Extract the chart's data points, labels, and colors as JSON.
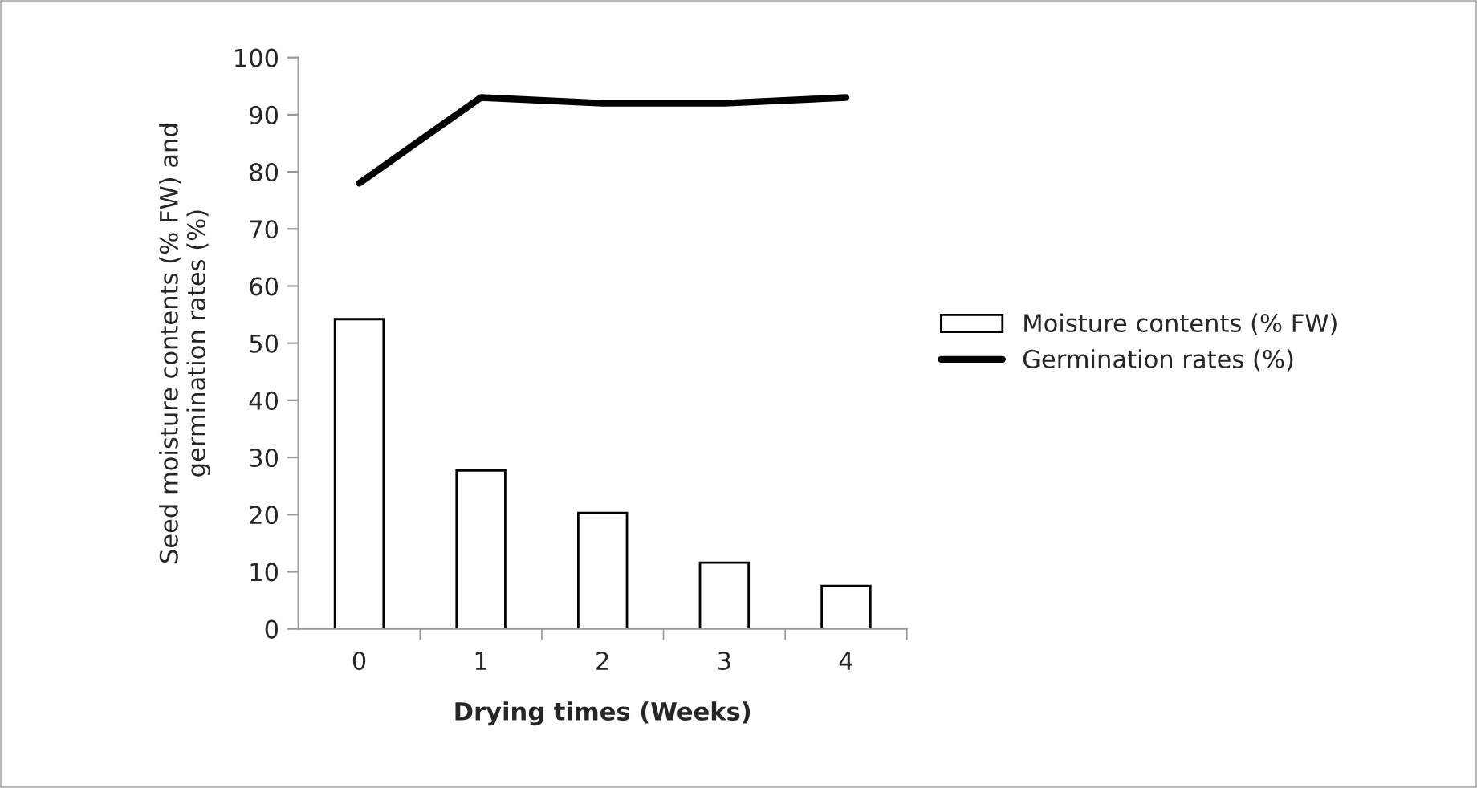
{
  "chart_data": {
    "type": "bar",
    "categories": [
      "0",
      "1",
      "2",
      "3",
      "4"
    ],
    "xlabel": "Drying times (Weeks)",
    "ylabel": "Seed moisture contents (% FW) and\ngermination rates (%)",
    "series": [
      {
        "name": "Moisture contents (% FW)",
        "color": "#ffffff",
        "values": [
          54.2,
          27.7,
          20.3,
          11.6,
          7.5
        ]
      },
      {
        "name": "Germination rates (%)",
        "type": "line",
        "color": "#000000",
        "values": [
          78,
          93,
          92,
          92,
          93
        ]
      }
    ],
    "ylim": [
      0,
      100
    ],
    "yticks": [
      0,
      10,
      20,
      30,
      40,
      50,
      60,
      70,
      80,
      90,
      100
    ],
    "grid": false,
    "legend": "right",
    "marker": "none",
    "line_style": "solid"
  }
}
